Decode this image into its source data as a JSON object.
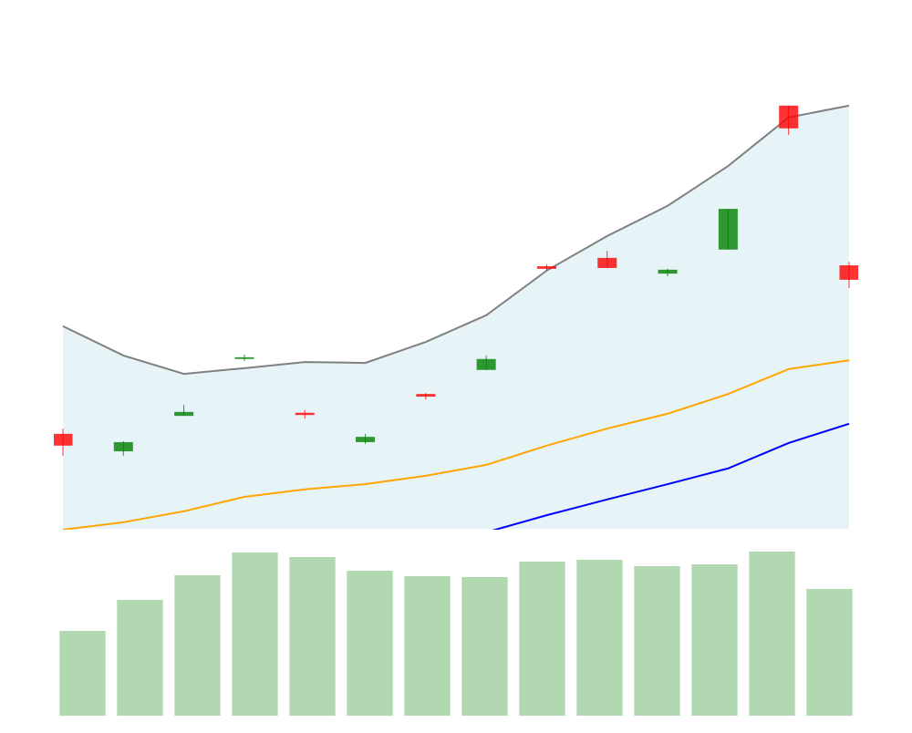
{
  "chart_data": [
    {
      "type": "candlestick",
      "open": [
        21.7,
        17.7,
        25.8,
        38.8,
        26.5,
        19.8,
        30.8,
        36.3,
        60.0,
        61.9,
        58.3,
        63.8,
        96.7,
        60.2
      ],
      "high": [
        22.9,
        20.0,
        28.3,
        39.8,
        27.1,
        21.7,
        31.0,
        39.6,
        60.4,
        63.5,
        59.4,
        73.1,
        96.7,
        61.0
      ],
      "low": [
        16.7,
        16.7,
        25.8,
        38.3,
        25.2,
        19.4,
        29.6,
        36.3,
        59.0,
        59.6,
        57.7,
        63.8,
        90.0,
        55.0
      ],
      "close": [
        19.0,
        19.8,
        26.7,
        39.2,
        26.0,
        21.0,
        30.2,
        38.8,
        59.4,
        59.6,
        59.2,
        73.1,
        91.5,
        56.9
      ],
      "up_color": "#008000",
      "down_color": "#ff0000",
      "series": [
        {
          "color": "#808080",
          "fill": "#add8e6",
          "values": [
            46.3,
            39.6,
            35.4,
            36.7,
            38.1,
            37.9,
            42.7,
            48.8,
            59.0,
            66.9,
            73.8,
            82.9,
            94.0,
            96.7
          ]
        },
        {
          "color": "#ffa500",
          "values": [
            -0.2,
            1.5,
            4.0,
            7.3,
            9.0,
            10.2,
            12.1,
            14.6,
            19.0,
            22.9,
            26.3,
            30.8,
            36.5,
            38.5
          ]
        },
        {
          "color": "#0000ff",
          "values": [
            null,
            null,
            null,
            null,
            null,
            null,
            null,
            -0.8,
            3.1,
            6.7,
            10.2,
            13.8,
            19.6,
            24.0
          ]
        }
      ],
      "xlim": [
        0,
        13
      ],
      "ylim": [
        0,
        100
      ]
    },
    {
      "type": "bar",
      "color": "#b2d8b2",
      "values": [
        93,
        127,
        154,
        179,
        174,
        159,
        153,
        152,
        169,
        171,
        164,
        166,
        180,
        139
      ],
      "xlim": [
        -0.5,
        13.5
      ],
      "ylim": [
        0,
        185
      ]
    }
  ]
}
